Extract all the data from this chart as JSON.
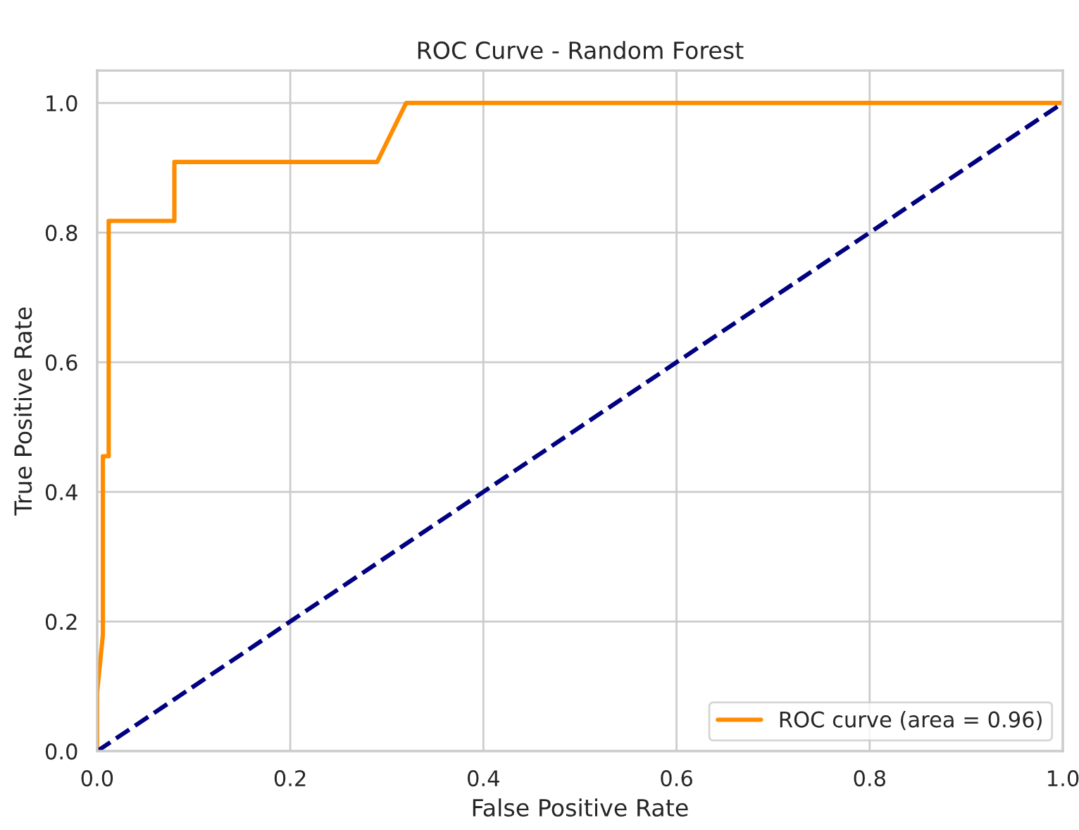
{
  "chart_data": {
    "type": "line",
    "title": "ROC Curve - Random Forest",
    "xlabel": "False Positive Rate",
    "ylabel": "True Positive Rate",
    "series": [
      {
        "name": "ROC curve (area = 0.96)",
        "color": "#ff8c00",
        "x": [
          0,
          0,
          0.006,
          0.006,
          0.012,
          0.012,
          0.08,
          0.08,
          0.29,
          0.32,
          1.0
        ],
        "values": [
          0,
          0.09,
          0.18,
          0.455,
          0.455,
          0.818,
          0.818,
          0.909,
          0.909,
          1.0,
          1.0
        ],
        "line_style": "solid"
      },
      {
        "color": "#000080",
        "x": [
          0,
          1
        ],
        "values": [
          0,
          1
        ],
        "line_style": "dashed"
      }
    ],
    "xlim": [
      0,
      1
    ],
    "ylim": [
      0,
      1.05
    ],
    "xticks": [
      {
        "value": 0,
        "label": "0.0"
      },
      0.2,
      0.4,
      0.6,
      0.8,
      {
        "value": 1,
        "label": "1.0"
      }
    ],
    "yticks": [
      {
        "value": 0,
        "label": "0.0"
      },
      0.2,
      0.4,
      0.6,
      0.8,
      {
        "value": 1,
        "label": "1.0"
      }
    ],
    "grid": true,
    "legend": "bottom right",
    "marker": "none"
  }
}
